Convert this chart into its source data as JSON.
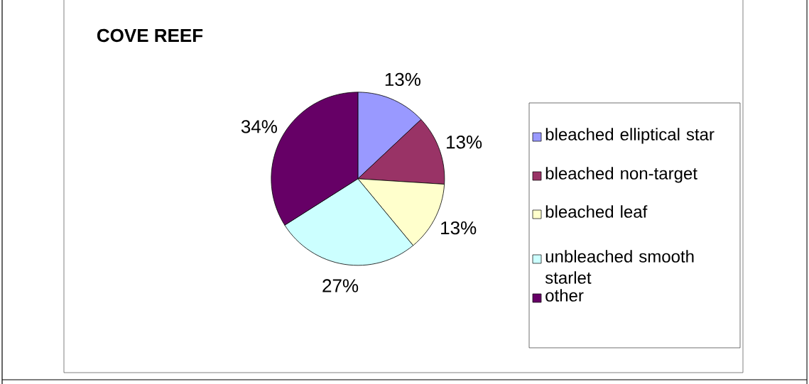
{
  "chart_data": {
    "type": "pie",
    "title": "COVE REEF",
    "categories": [
      "bleached elliptical star",
      "bleached non-target",
      "bleached leaf",
      "unbleached smooth starlet",
      "other"
    ],
    "values": [
      13,
      13,
      13,
      27,
      34
    ],
    "colors": [
      "#9999ff",
      "#993366",
      "#ffffcc",
      "#ccffff",
      "#660066"
    ],
    "value_labels": [
      "13%",
      "13%",
      "13%",
      "27%",
      "34%"
    ],
    "legend": "right"
  }
}
